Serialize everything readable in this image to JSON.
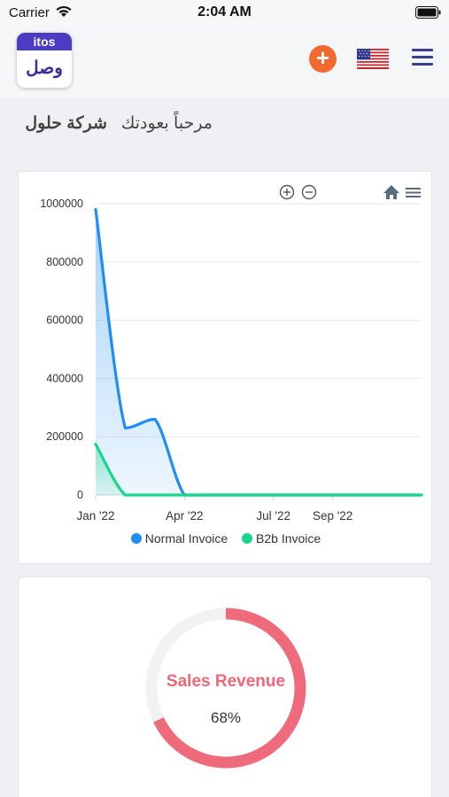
{
  "status_bar": {
    "carrier": "Carrier",
    "time": "2:04 AM"
  },
  "header": {
    "logo_top": "itos",
    "logo_bottom": "وصل",
    "add_icon": "plus-icon",
    "flag_icon": "us-flag-icon",
    "menu_icon": "hamburger-icon"
  },
  "welcome": {
    "greeting": "مرحباً بعودتك",
    "company": "شركة حلول"
  },
  "chart_toolbar": {
    "zoom_in": "zoom-in-icon",
    "zoom_out": "zoom-out-icon",
    "reset": "home-icon",
    "menu": "menu-icon"
  },
  "chart_data": {
    "type": "area",
    "x_ticks": [
      "Jan '22",
      "Apr '22",
      "Jul '22",
      "Sep '22"
    ],
    "y_ticks": [
      "1000000",
      "800000",
      "600000",
      "400000",
      "200000",
      "0"
    ],
    "ylim": [
      0,
      1000000
    ],
    "series": [
      {
        "name": "Normal Invoice",
        "color": "#1e8ef2",
        "points": [
          [
            "2022-01",
            980000
          ],
          [
            "2022-02",
            230000
          ],
          [
            "2022-03",
            260000
          ],
          [
            "2022-04",
            0
          ],
          [
            "2022-05",
            0
          ],
          [
            "2022-06",
            0
          ],
          [
            "2022-07",
            0
          ],
          [
            "2022-08",
            0
          ],
          [
            "2022-09",
            0
          ],
          [
            "2022-10",
            0
          ],
          [
            "2022-11",
            0
          ],
          [
            "2022-12",
            0
          ]
        ]
      },
      {
        "name": "B2b Invoice",
        "color": "#19d68c",
        "points": [
          [
            "2022-01",
            175000
          ],
          [
            "2022-02",
            0
          ],
          [
            "2022-03",
            0
          ],
          [
            "2022-04",
            0
          ],
          [
            "2022-05",
            0
          ],
          [
            "2022-06",
            0
          ],
          [
            "2022-07",
            0
          ],
          [
            "2022-08",
            0
          ],
          [
            "2022-09",
            0
          ],
          [
            "2022-10",
            0
          ],
          [
            "2022-11",
            0
          ],
          [
            "2022-12",
            0
          ]
        ]
      }
    ]
  },
  "revenue": {
    "label": "Sales Revenue",
    "value_text": "68%",
    "fraction": 0.68,
    "color": "#ef6b7c",
    "track_color": "#f2f2f2"
  }
}
